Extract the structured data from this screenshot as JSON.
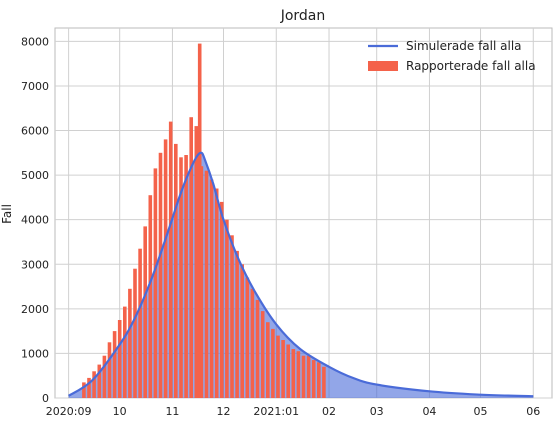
{
  "chart_data": {
    "type": "bar+line",
    "title": "Jordan",
    "xlabel": "",
    "ylabel": "Fall",
    "ylim": [
      0,
      8300
    ],
    "y_ticks": [
      0,
      1000,
      2000,
      3000,
      4000,
      5000,
      6000,
      7000,
      8000
    ],
    "x_range": [
      "2020-08-24",
      "2021-06-12"
    ],
    "x_ticks": [
      {
        "date": "2020-09-01",
        "label": "2020:09"
      },
      {
        "date": "2020-10-01",
        "label": "10"
      },
      {
        "date": "2020-11-01",
        "label": "11"
      },
      {
        "date": "2020-12-01",
        "label": "12"
      },
      {
        "date": "2021-01-01",
        "label": "2021:01"
      },
      {
        "date": "2021-02-01",
        "label": "02"
      },
      {
        "date": "2021-03-01",
        "label": "03"
      },
      {
        "date": "2021-04-01",
        "label": "04"
      },
      {
        "date": "2021-05-01",
        "label": "05"
      },
      {
        "date": "2021-06-01",
        "label": "06"
      }
    ],
    "grid": true,
    "legend_position": "top-right",
    "legend": [
      {
        "label": "Simulerade fall alla",
        "kind": "line",
        "color": "#4a6bd8"
      },
      {
        "label": "Rapporterade fall alla",
        "kind": "bar",
        "color": "#f4624a"
      }
    ],
    "series": [
      {
        "name": "Rapporterade fall alla",
        "kind": "bar",
        "color": "#f4624a",
        "x": [
          "2020-09-10",
          "2020-09-13",
          "2020-09-16",
          "2020-09-19",
          "2020-09-22",
          "2020-09-25",
          "2020-09-28",
          "2020-10-01",
          "2020-10-04",
          "2020-10-07",
          "2020-10-10",
          "2020-10-13",
          "2020-10-16",
          "2020-10-19",
          "2020-10-22",
          "2020-10-25",
          "2020-10-28",
          "2020-10-31",
          "2020-11-03",
          "2020-11-06",
          "2020-11-09",
          "2020-11-12",
          "2020-11-15",
          "2020-11-17",
          "2020-11-18",
          "2020-11-21",
          "2020-11-24",
          "2020-11-27",
          "2020-11-30",
          "2020-12-03",
          "2020-12-06",
          "2020-12-09",
          "2020-12-12",
          "2020-12-15",
          "2020-12-18",
          "2020-12-21",
          "2020-12-24",
          "2020-12-27",
          "2020-12-30",
          "2021-01-02",
          "2021-01-05",
          "2021-01-08",
          "2021-01-11",
          "2021-01-14",
          "2021-01-17",
          "2021-01-20",
          "2021-01-23",
          "2021-01-26",
          "2021-01-29"
        ],
        "values": [
          350,
          450,
          600,
          750,
          950,
          1250,
          1500,
          1750,
          2050,
          2450,
          2900,
          3350,
          3850,
          4550,
          5150,
          5500,
          5800,
          6200,
          5700,
          5400,
          5450,
          6300,
          6100,
          7950,
          5200,
          5100,
          4900,
          4700,
          4400,
          4000,
          3650,
          3300,
          3000,
          2700,
          2450,
          2200,
          1950,
          1700,
          1550,
          1400,
          1300,
          1200,
          1100,
          1050,
          950,
          950,
          850,
          800,
          700
        ]
      },
      {
        "name": "Simulerade fall alla",
        "kind": "line",
        "color": "#4a6bd8",
        "x": [
          "2020-09-01",
          "2020-09-15",
          "2020-10-01",
          "2020-10-10",
          "2020-10-20",
          "2020-10-30",
          "2020-11-05",
          "2020-11-10",
          "2020-11-15",
          "2020-11-18",
          "2020-11-20",
          "2020-11-25",
          "2020-12-01",
          "2020-12-10",
          "2020-12-20",
          "2021-01-01",
          "2021-01-15",
          "2021-02-01",
          "2021-02-15",
          "2021-03-01",
          "2021-04-01",
          "2021-05-01",
          "2021-06-01"
        ],
        "values": [
          50,
          400,
          1200,
          1800,
          2700,
          3800,
          4500,
          5000,
          5400,
          5500,
          5350,
          4800,
          4000,
          3100,
          2350,
          1650,
          1100,
          700,
          450,
          300,
          150,
          75,
          40
        ]
      }
    ]
  }
}
